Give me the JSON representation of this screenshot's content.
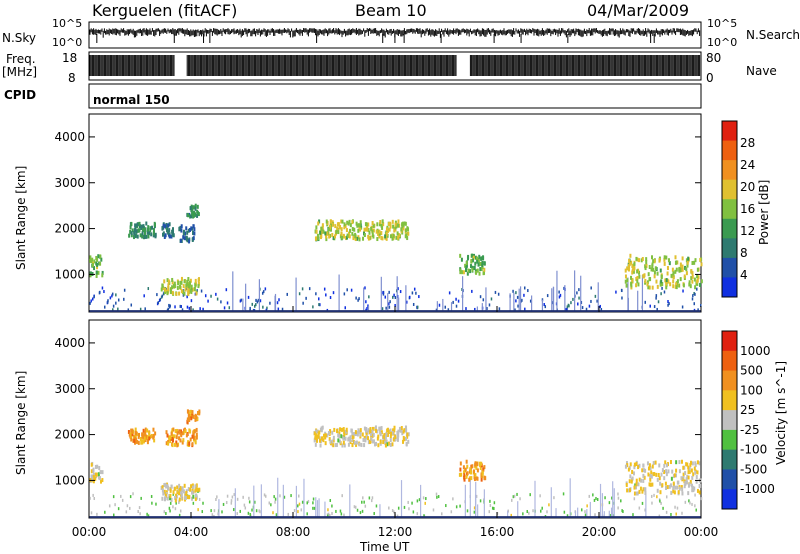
{
  "header": {
    "station": "Kerguelen (fitACF)",
    "beam": "Beam 10",
    "date": "04/Mar/2009"
  },
  "panels": {
    "nsky": {
      "label": "N.Sky",
      "right_label": "N.Search",
      "tick_top": "10^5",
      "tick_bottom": "10^0"
    },
    "freq": {
      "label_line1": "Freq.",
      "label_line2": "[MHz]",
      "ticks": [
        "18",
        "8"
      ],
      "right_label": "Nave",
      "right_ticks": [
        "80",
        "0"
      ]
    },
    "cpid": {
      "label": "CPID",
      "mode": "normal 150"
    }
  },
  "chart_data": [
    {
      "type": "heatmap",
      "name": "power",
      "xlabel": "",
      "ylabel": "Slant Range [km]",
      "xlim": [
        0,
        24
      ],
      "ylim": [
        180,
        4500
      ],
      "yticks": [
        1000,
        2000,
        3000,
        4000
      ],
      "colorbar": {
        "label": "Power [dB]",
        "range": [
          0,
          32
        ],
        "ticks": [
          "4",
          "8",
          "12",
          "16",
          "20",
          "24",
          "28"
        ],
        "colors": [
          "#1030e0",
          "#2050a8",
          "#2e7a70",
          "#3a9a50",
          "#80c040",
          "#e0c030",
          "#f09020",
          "#ee6010",
          "#e02010"
        ]
      },
      "blobs": [
        {
          "t0": 0.0,
          "t1": 0.5,
          "r0": 950,
          "r1": 1400,
          "level": 0.45
        },
        {
          "t0": 1.5,
          "t1": 2.6,
          "r0": 1800,
          "r1": 2100,
          "level": 0.3
        },
        {
          "t0": 2.8,
          "t1": 3.3,
          "r0": 1800,
          "r1": 2100,
          "level": 0.2
        },
        {
          "t0": 3.5,
          "t1": 4.1,
          "r0": 1700,
          "r1": 2050,
          "level": 0.2
        },
        {
          "t0": 3.8,
          "t1": 4.3,
          "r0": 2250,
          "r1": 2500,
          "level": 0.3
        },
        {
          "t0": 2.8,
          "t1": 4.3,
          "r0": 550,
          "r1": 900,
          "level": 0.55
        },
        {
          "t0": 8.8,
          "t1": 12.5,
          "r0": 1750,
          "r1": 2150,
          "level": 0.55
        },
        {
          "t0": 14.5,
          "t1": 15.5,
          "r0": 1000,
          "r1": 1400,
          "level": 0.45
        },
        {
          "t0": 21.0,
          "t1": 24.0,
          "r0": 700,
          "r1": 1400,
          "level": 0.55
        }
      ]
    },
    {
      "type": "heatmap",
      "name": "velocity",
      "xlabel": "Time UT",
      "ylabel": "Slant Range [km]",
      "xlim": [
        0,
        24
      ],
      "ylim": [
        180,
        4500
      ],
      "xticks": [
        "00:00",
        "04:00",
        "08:00",
        "12:00",
        "16:00",
        "20:00",
        "00:00"
      ],
      "yticks": [
        1000,
        2000,
        3000,
        4000
      ],
      "colorbar": {
        "label": "Velocity [m s^-1]",
        "ticks": [
          "1000",
          "500",
          "100",
          "25",
          "-25",
          "-100",
          "-500",
          "-1000"
        ],
        "colors": [
          "#1030e0",
          "#2050a8",
          "#2e7a70",
          "#50c040",
          "#c0c0c0",
          "#f0c020",
          "#f09020",
          "#ee6010",
          "#e02010"
        ]
      },
      "blobs": [
        {
          "t0": 0.0,
          "t1": 0.5,
          "r0": 950,
          "r1": 1350,
          "level": 0.55
        },
        {
          "t0": 1.5,
          "t1": 2.6,
          "r0": 1800,
          "r1": 2100,
          "level": 0.72
        },
        {
          "t0": 3.0,
          "t1": 4.2,
          "r0": 1750,
          "r1": 2100,
          "level": 0.72
        },
        {
          "t0": 3.8,
          "t1": 4.3,
          "r0": 2250,
          "r1": 2500,
          "level": 0.75
        },
        {
          "t0": 2.8,
          "t1": 4.3,
          "r0": 550,
          "r1": 900,
          "level": 0.55
        },
        {
          "t0": 8.8,
          "t1": 12.5,
          "r0": 1750,
          "r1": 2150,
          "level": 0.55
        },
        {
          "t0": 14.5,
          "t1": 15.5,
          "r0": 1000,
          "r1": 1400,
          "level": 0.72
        },
        {
          "t0": 21.0,
          "t1": 24.0,
          "r0": 700,
          "r1": 1400,
          "level": 0.55
        }
      ]
    }
  ]
}
